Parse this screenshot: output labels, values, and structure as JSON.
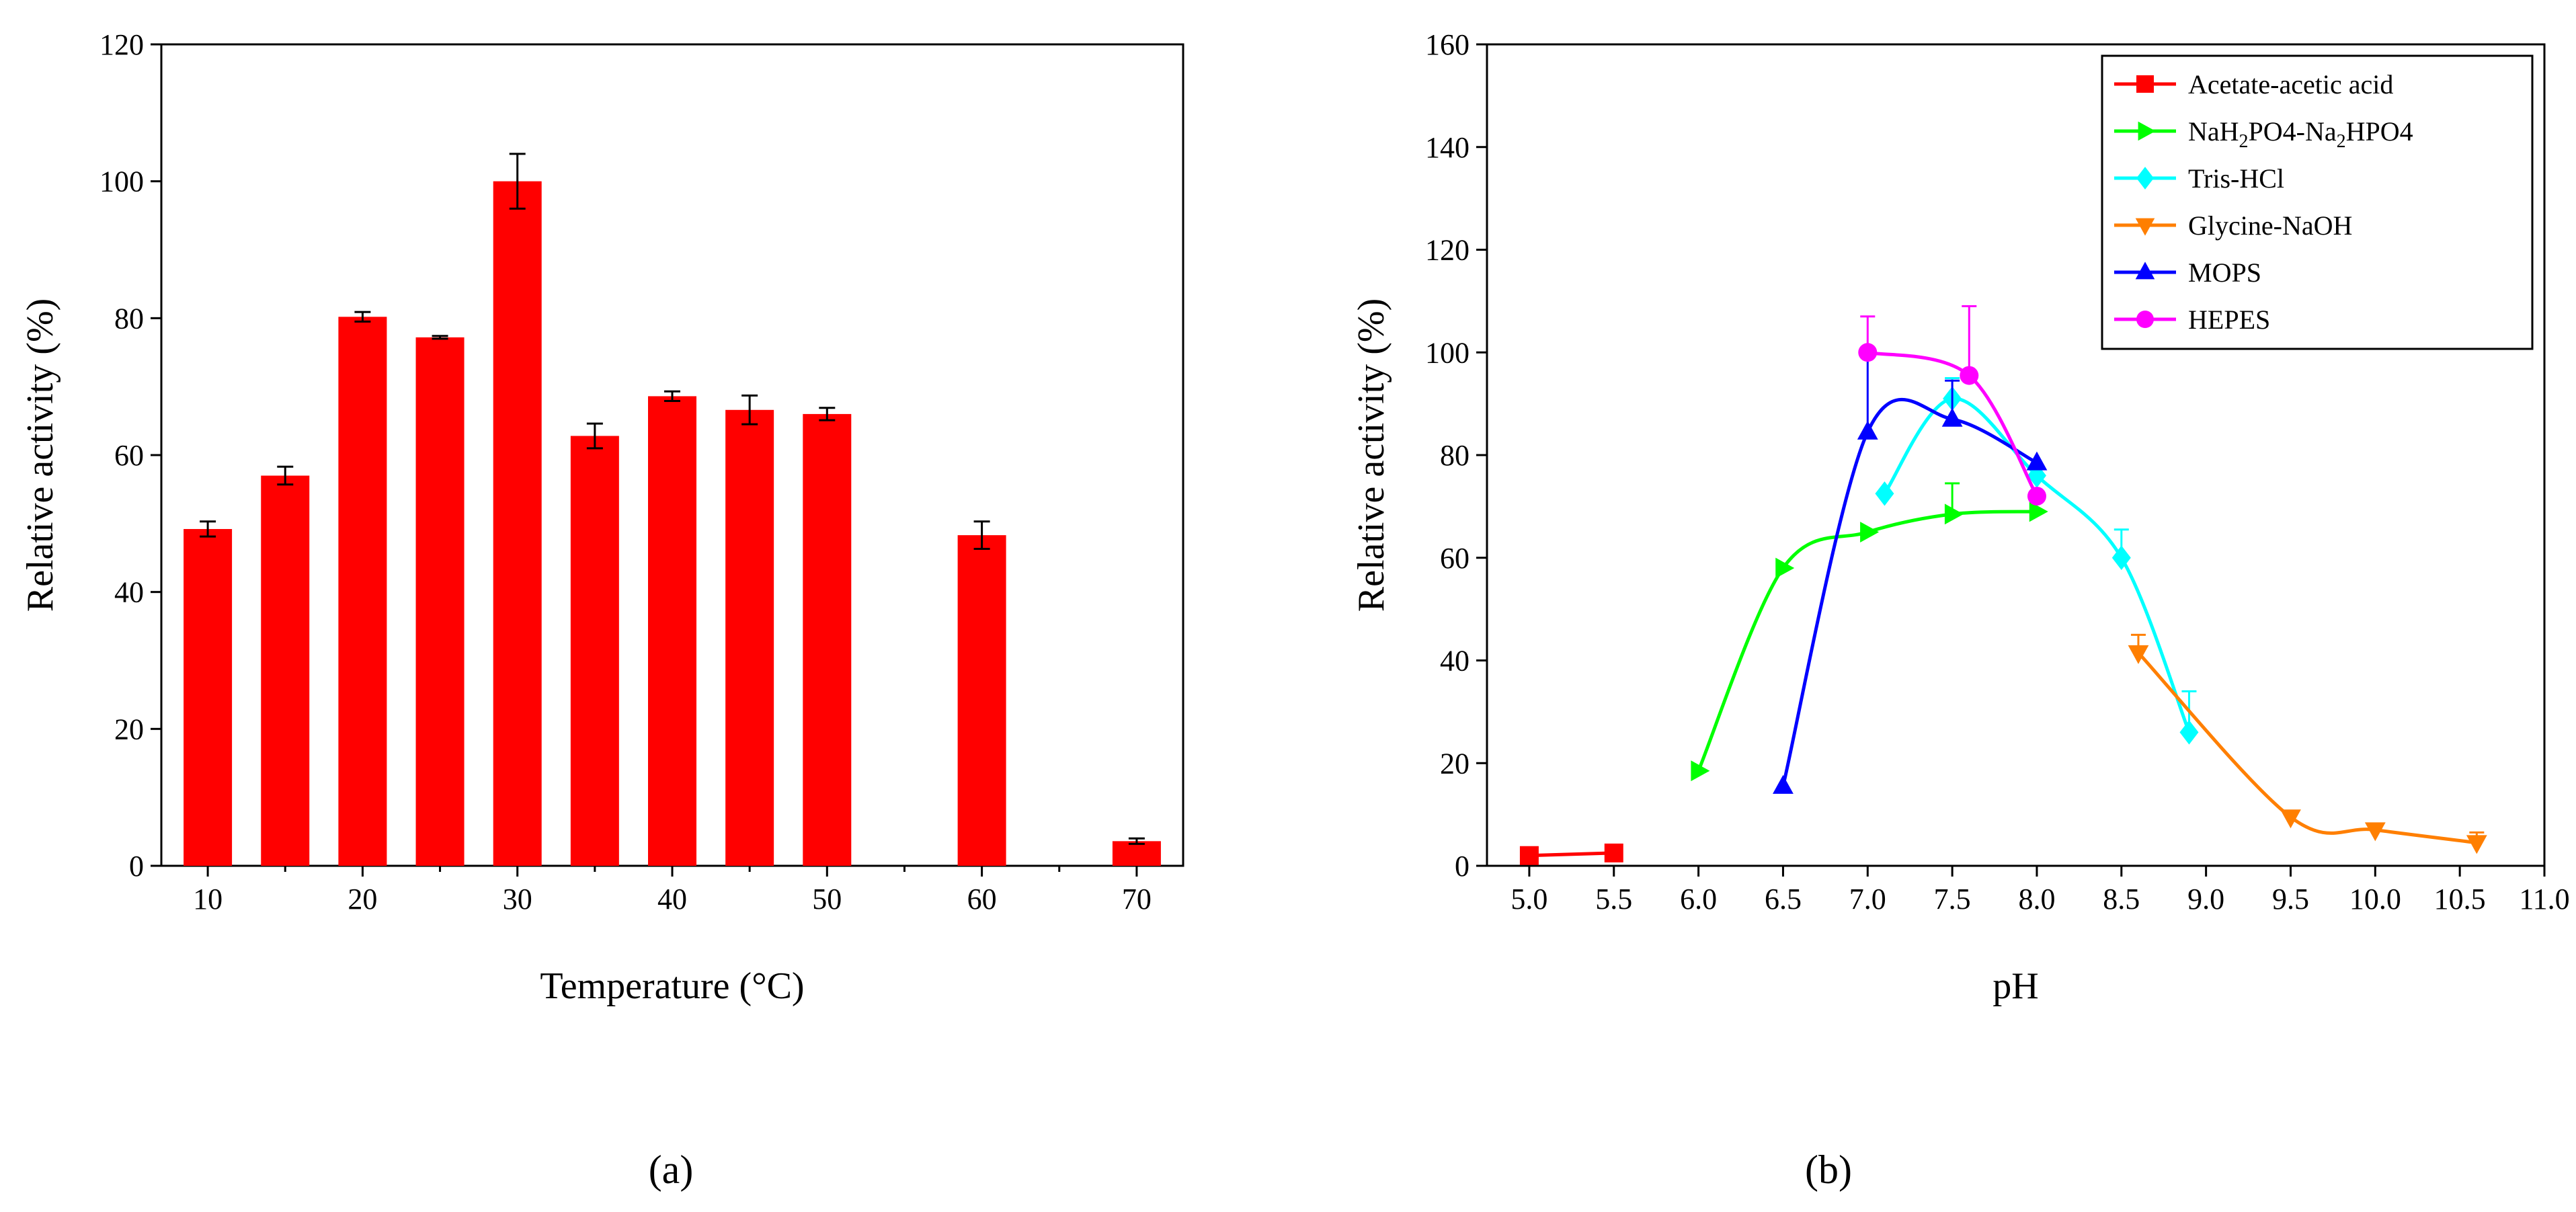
{
  "chart_data": [
    {
      "type": "bar",
      "panel_label": "(a)",
      "xlabel": "Temperature (°C)",
      "ylabel": "Relative activity (%)",
      "ylim": [
        0,
        120
      ],
      "yticks": [
        0,
        20,
        40,
        60,
        80,
        100,
        120
      ],
      "xlim": [
        7,
        73
      ],
      "xticks": [
        10,
        20,
        30,
        40,
        50,
        60,
        70
      ],
      "bar_color": "#ff0000",
      "x": [
        10,
        15,
        20,
        25,
        30,
        35,
        40,
        45,
        50,
        60,
        70
      ],
      "values": [
        49.2,
        57.0,
        80.2,
        77.2,
        100.0,
        62.8,
        68.6,
        66.6,
        66.0,
        48.3,
        3.6
      ],
      "errors": [
        1.1,
        1.3,
        0.7,
        0.2,
        4.0,
        1.8,
        0.7,
        2.1,
        0.9,
        2.0,
        0.4
      ]
    },
    {
      "type": "line",
      "panel_label": "(b)",
      "xlabel": "pH",
      "ylabel": "Relative activity (%)",
      "ylim": [
        0,
        160
      ],
      "yticks": [
        0,
        20,
        40,
        60,
        80,
        100,
        120,
        140,
        160
      ],
      "xlim": [
        4.75,
        11.0
      ],
      "xticks": [
        "5.0",
        "5.5",
        "6.0",
        "6.5",
        "7.0",
        "7.5",
        "8.0",
        "8.5",
        "9.0",
        "9.5",
        "10.0",
        "10.5",
        "11.0"
      ],
      "legend_position": "top-right",
      "series": [
        {
          "name": "Acetate-acetic acid",
          "name_main": "Acetate-acetic acid",
          "name_sub": [],
          "color": "#ff0000",
          "marker": "square",
          "x": [
            5.0,
            5.5
          ],
          "values": [
            2.0,
            2.5
          ],
          "errors": [
            0,
            0
          ]
        },
        {
          "name": "NaH2PO4-Na2HPO4",
          "name_main": "NaH",
          "name_sub": [
            "2",
            "PO4-Na",
            "2",
            "HPO4"
          ],
          "color": "#00ff00",
          "marker": "triangle-right",
          "x": [
            6.0,
            6.5,
            7.0,
            7.5,
            8.0
          ],
          "values": [
            18.5,
            58.0,
            65.0,
            68.5,
            69.0
          ],
          "errors": [
            0,
            0,
            0,
            6.0,
            0
          ]
        },
        {
          "name": "Tris-HCl",
          "name_main": "Tris-HCl",
          "name_sub": [],
          "color": "#00ffff",
          "marker": "diamond",
          "x": [
            7.1,
            7.5,
            8.0,
            8.5,
            8.9
          ],
          "values": [
            72.5,
            91.0,
            76.0,
            60.0,
            26.0
          ],
          "errors": [
            0,
            4.0,
            0,
            5.5,
            8.0
          ]
        },
        {
          "name": "Glycine-NaOH",
          "name_main": "Glycine-NaOH",
          "name_sub": [],
          "color": "#ff7f00",
          "marker": "triangle-down",
          "x": [
            8.6,
            9.5,
            10.0,
            10.6
          ],
          "values": [
            41.5,
            9.5,
            7.0,
            4.5
          ],
          "errors": [
            3.5,
            0,
            0,
            2.0
          ]
        },
        {
          "name": "MOPS",
          "name_main": "MOPS",
          "name_sub": [],
          "color": "#0000ff",
          "marker": "triangle-up",
          "x": [
            6.5,
            7.0,
            7.5,
            8.0
          ],
          "values": [
            15.5,
            84.5,
            87.0,
            78.5
          ],
          "errors": [
            0,
            15.0,
            7.5,
            0
          ]
        },
        {
          "name": "HEPES",
          "name_main": "HEPES",
          "name_sub": [],
          "color": "#ff00ff",
          "marker": "circle",
          "x": [
            7.0,
            7.6,
            8.0
          ],
          "values": [
            100.0,
            95.5,
            72.0
          ],
          "errors": [
            7.0,
            13.5,
            0
          ]
        }
      ]
    }
  ]
}
